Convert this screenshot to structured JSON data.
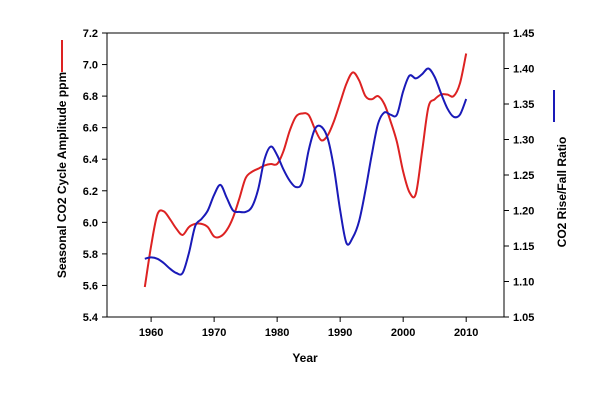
{
  "chart_data": {
    "type": "line",
    "title": "",
    "xlabel": "Year",
    "ylabel_left": "Seasonal CO2 Cycle Amplitude ppm",
    "ylabel_right": "CO2 Rise/Fall Ratio",
    "xlim": [
      1953,
      2016
    ],
    "ylim_left": [
      5.4,
      7.2
    ],
    "ylim_right": [
      1.05,
      1.45
    ],
    "x_ticks": [
      1960,
      1970,
      1980,
      1990,
      2000,
      2010
    ],
    "y_ticks_left": [
      "5.4",
      "5.6",
      "5.8",
      "6.0",
      "6.2",
      "6.4",
      "6.6",
      "6.8",
      "7.0",
      "7.2"
    ],
    "y_ticks_right": [
      "1.05",
      "1.10",
      "1.15",
      "1.20",
      "1.25",
      "1.30",
      "1.35",
      "1.40",
      "1.45"
    ],
    "grid": false,
    "series": [
      {
        "axis": "left",
        "color": "#dd2222",
        "x": [
          1959,
          1960,
          1961,
          1962,
          1963,
          1964,
          1965,
          1966,
          1967,
          1968,
          1969,
          1970,
          1971,
          1972,
          1973,
          1974,
          1975,
          1976,
          1977,
          1978,
          1979,
          1980,
          1981,
          1982,
          1983,
          1984,
          1985,
          1986,
          1987,
          1988,
          1989,
          1990,
          1991,
          1992,
          1993,
          1994,
          1995,
          1996,
          1997,
          1998,
          1999,
          2000,
          2001,
          2002,
          2003,
          2004,
          2005,
          2006,
          2007,
          2008,
          2009,
          2010
        ],
        "values": [
          5.59,
          5.85,
          6.05,
          6.07,
          6.02,
          5.96,
          5.92,
          5.97,
          5.99,
          5.99,
          5.97,
          5.91,
          5.91,
          5.95,
          6.03,
          6.15,
          6.28,
          6.32,
          6.34,
          6.36,
          6.37,
          6.37,
          6.45,
          6.58,
          6.67,
          6.69,
          6.68,
          6.59,
          6.52,
          6.55,
          6.64,
          6.76,
          6.88,
          6.95,
          6.9,
          6.8,
          6.78,
          6.8,
          6.75,
          6.64,
          6.51,
          6.32,
          6.19,
          6.18,
          6.45,
          6.73,
          6.78,
          6.81,
          6.81,
          6.8,
          6.88,
          7.07
        ]
      },
      {
        "axis": "right",
        "color": "#1a1ab8",
        "x": [
          1959,
          1960,
          1961,
          1962,
          1963,
          1964,
          1965,
          1966,
          1967,
          1968,
          1969,
          1970,
          1971,
          1972,
          1973,
          1974,
          1975,
          1976,
          1977,
          1978,
          1979,
          1980,
          1981,
          1982,
          1983,
          1984,
          1985,
          1986,
          1987,
          1988,
          1989,
          1990,
          1991,
          1992,
          1993,
          1994,
          1995,
          1996,
          1997,
          1998,
          1999,
          2000,
          2001,
          2002,
          2003,
          2004,
          2005,
          2006,
          2007,
          2008,
          2009,
          2010
        ],
        "values": [
          1.132,
          1.134,
          1.132,
          1.126,
          1.118,
          1.112,
          1.112,
          1.14,
          1.178,
          1.188,
          1.2,
          1.222,
          1.236,
          1.218,
          1.2,
          1.198,
          1.198,
          1.205,
          1.23,
          1.272,
          1.29,
          1.278,
          1.258,
          1.242,
          1.233,
          1.24,
          1.285,
          1.315,
          1.318,
          1.302,
          1.26,
          1.2,
          1.154,
          1.162,
          1.185,
          1.228,
          1.278,
          1.322,
          1.338,
          1.335,
          1.335,
          1.368,
          1.39,
          1.386,
          1.392,
          1.4,
          1.388,
          1.365,
          1.344,
          1.332,
          1.335,
          1.357
        ]
      }
    ]
  }
}
